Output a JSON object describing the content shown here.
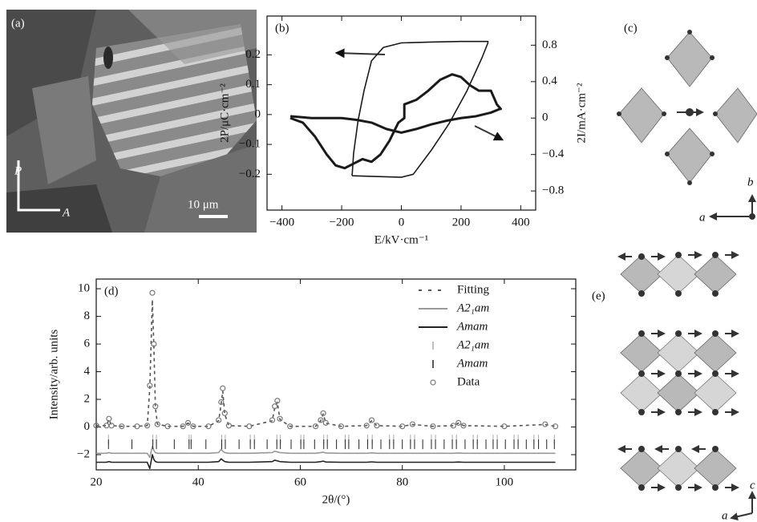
{
  "chart_data": [
    {
      "type": "line",
      "panel_label": "(b)",
      "xlabel": "E/kV·cm⁻¹",
      "ylabel": "2P/μC·cm⁻²",
      "y2label": "2I/mA·cm⁻²",
      "xlim": [
        -450,
        450
      ],
      "ylim": [
        -0.32,
        0.33
      ],
      "y2lim": [
        -1.01,
        1.12
      ],
      "xticks": [
        {
          "value": -400,
          "label": "−400"
        },
        {
          "value": -200,
          "label": "−200"
        },
        0,
        200,
        400
      ],
      "yticks": [
        {
          "value": -0.2,
          "label": "−0.2"
        },
        {
          "value": -0.1,
          "label": "−0.1"
        },
        0,
        0.1,
        0.2
      ],
      "y2ticks": [
        {
          "value": -0.8,
          "label": "−0.8"
        },
        {
          "value": -0.4,
          "label": "−0.4"
        },
        0,
        0.4,
        0.8
      ],
      "series": [
        {
          "color": "#1a1a1a",
          "style": "solid",
          "x": [
            -165,
            -100,
            0,
            40,
            100,
            160,
            220,
            270,
            290,
            290,
            200,
            100,
            0,
            -60,
            -100,
            -125,
            -145,
            -160,
            -165
          ],
          "values": [
            -0.205,
            -0.207,
            -0.21,
            -0.2,
            -0.12,
            -0.03,
            0.08,
            0.19,
            0.24,
            0.245,
            0.245,
            0.243,
            0.24,
            0.225,
            0.18,
            0.08,
            -0.02,
            -0.13,
            -0.205
          ]
        },
        {
          "color": "#1a1a1a",
          "style": "thick",
          "axis": "y2",
          "x": [
            -372,
            -330,
            -290,
            -250,
            -220,
            -190,
            -160,
            -130,
            -100,
            -70,
            -40,
            -10,
            10,
            10,
            50,
            90,
            130,
            170,
            200,
            230,
            260,
            300,
            320,
            333,
            330,
            300,
            250,
            200,
            150,
            100,
            50,
            0,
            -50,
            -100,
            -150,
            -200,
            -250,
            -300,
            -372
          ],
          "values": [
            0.0,
            -0.05,
            -0.2,
            -0.4,
            -0.52,
            -0.55,
            -0.5,
            -0.45,
            -0.48,
            -0.4,
            -0.25,
            -0.05,
            0.0,
            0.15,
            0.2,
            0.3,
            0.42,
            0.48,
            0.45,
            0.36,
            0.3,
            0.3,
            0.15,
            0.1,
            0.1,
            0.06,
            0.02,
            0.0,
            -0.03,
            -0.07,
            -0.12,
            -0.16,
            -0.12,
            -0.05,
            -0.02,
            0.0,
            0.0,
            0.0,
            0.02
          ]
        }
      ]
    },
    {
      "type": "line",
      "panel_label": "(d)",
      "xlabel": "2θ/(°)",
      "ylabel": "Intensity/arb. units",
      "xlim": [
        20,
        114
      ],
      "ylim": [
        -3.1,
        10.7
      ],
      "xticks": [
        20,
        40,
        60,
        80,
        100
      ],
      "yticks": [
        {
          "value": -2,
          "label": "−2"
        },
        0,
        2,
        4,
        6,
        8,
        10
      ],
      "legend": "upper right",
      "x": [
        20,
        22,
        22.5,
        23,
        25,
        28,
        30,
        30.5,
        31,
        31.3,
        31.6,
        32,
        34,
        37,
        38,
        39,
        42,
        44,
        44.5,
        44.8,
        45.2,
        46,
        50,
        54.5,
        55,
        55.5,
        56,
        58,
        63,
        64,
        64.5,
        65,
        68,
        73,
        74,
        75,
        80,
        82,
        86,
        90,
        91,
        92,
        100,
        108,
        110
      ],
      "series": [
        {
          "name": "Fitting",
          "color": "#555555",
          "style": "dashed",
          "values": [
            0.1,
            0.1,
            0.55,
            0.1,
            0.05,
            0.05,
            0.1,
            2.8,
            9.2,
            5.8,
            1.4,
            0.2,
            0.05,
            0.05,
            0.28,
            0.05,
            0.05,
            0.45,
            1.7,
            2.6,
            0.9,
            0.1,
            0.05,
            0.45,
            1.4,
            1.8,
            0.55,
            0.05,
            0.05,
            0.45,
            0.95,
            0.28,
            0.05,
            0.1,
            0.45,
            0.1,
            0.05,
            0.18,
            0.05,
            0.1,
            0.28,
            0.1,
            0.05,
            0.18,
            0.05
          ]
        },
        {
          "name": "A2₁am",
          "color": "#999999",
          "style": "solid",
          "values": [
            -1.9,
            -1.9,
            -1.85,
            -1.9,
            -1.9,
            -1.9,
            -1.9,
            -2.2,
            -1.4,
            -1.7,
            -1.85,
            -1.9,
            -1.9,
            -1.9,
            -1.9,
            -1.9,
            -1.9,
            -1.85,
            -1.6,
            -1.75,
            -1.85,
            -1.9,
            -1.9,
            -1.85,
            -1.75,
            -1.8,
            -1.85,
            -1.9,
            -1.9,
            -1.85,
            -1.82,
            -1.88,
            -1.9,
            -1.9,
            -1.87,
            -1.9,
            -1.9,
            -1.9,
            -1.9,
            -1.9,
            -1.88,
            -1.9,
            -1.9,
            -1.9,
            -1.9
          ]
        },
        {
          "name": "Amam",
          "color": "#222222",
          "style": "solid",
          "values": [
            -2.55,
            -2.55,
            -2.5,
            -2.55,
            -2.55,
            -2.55,
            -2.55,
            -3.0,
            -2.0,
            -2.35,
            -2.5,
            -2.55,
            -2.55,
            -2.55,
            -2.55,
            -2.55,
            -2.55,
            -2.5,
            -2.3,
            -2.4,
            -2.5,
            -2.55,
            -2.55,
            -2.5,
            -2.4,
            -2.45,
            -2.5,
            -2.55,
            -2.55,
            -2.5,
            -2.47,
            -2.53,
            -2.55,
            -2.55,
            -2.52,
            -2.55,
            -2.55,
            -2.55,
            -2.55,
            -2.55,
            -2.53,
            -2.55,
            -2.55,
            -2.55,
            -2.55
          ]
        },
        {
          "name": "A2₁am",
          "color": "#aaaaaa",
          "style": "ticks",
          "y": -0.9,
          "x": [
            22.4,
            31.1,
            31.8,
            38.2,
            38.6,
            44.6,
            45.3,
            50.2,
            51,
            55.4,
            56.1,
            60.1,
            60.7,
            64.6,
            65.3,
            68.8,
            69.5,
            73.2,
            74.1,
            77.5,
            78.3,
            81.6,
            82.4,
            85.7,
            86.5,
            89.8,
            90.6,
            93.9,
            94.7,
            97.8,
            98.6,
            101.9,
            102.7,
            105.8,
            106.7,
            109.8
          ]
        },
        {
          "name": "Amam",
          "color": "#222222",
          "style": "ticks",
          "y": -1.25,
          "x": [
            22.4,
            27,
            31.1,
            31.8,
            35.3,
            38.2,
            38.6,
            41.5,
            44.6,
            45.3,
            48,
            50.2,
            51,
            53.5,
            55.4,
            56.1,
            58.2,
            60.1,
            60.7,
            62.8,
            64.6,
            65.3,
            67.1,
            68.8,
            69.5,
            71.5,
            73.2,
            74.1,
            75.8,
            77.5,
            78.3,
            80,
            81.6,
            82.4,
            84,
            85.7,
            86.5,
            88.2,
            89.8,
            90.6,
            92.3,
            93.9,
            94.7,
            96.4,
            97.8,
            98.6,
            100.2,
            101.9,
            102.7,
            104.3,
            105.8,
            106.7,
            108.3,
            109.8
          ]
        },
        {
          "name": "Data",
          "color": "#777777",
          "style": "circles",
          "values": [
            0.1,
            0.1,
            0.6,
            0.1,
            0.05,
            0.05,
            0.1,
            3,
            9.7,
            6,
            1.5,
            0.2,
            0.05,
            0.05,
            0.3,
            0.05,
            0.05,
            0.5,
            1.8,
            2.8,
            1.0,
            0.1,
            0.05,
            0.5,
            1.5,
            1.9,
            0.6,
            0.05,
            0.05,
            0.5,
            1.0,
            0.3,
            0.05,
            0.1,
            0.5,
            0.1,
            0.05,
            0.2,
            0.05,
            0.1,
            0.3,
            0.1,
            0.05,
            0.2,
            0.05
          ]
        }
      ]
    }
  ],
  "panels": {
    "a": {
      "label": "(a)",
      "polarizer": "P",
      "analyzer": "A",
      "scale_bar": "10 μm"
    },
    "c": {
      "label": "(c)",
      "axis_b": "b",
      "axis_a": "a"
    },
    "e": {
      "label": "(e)",
      "axis_c": "c",
      "axis_a": "a"
    }
  }
}
